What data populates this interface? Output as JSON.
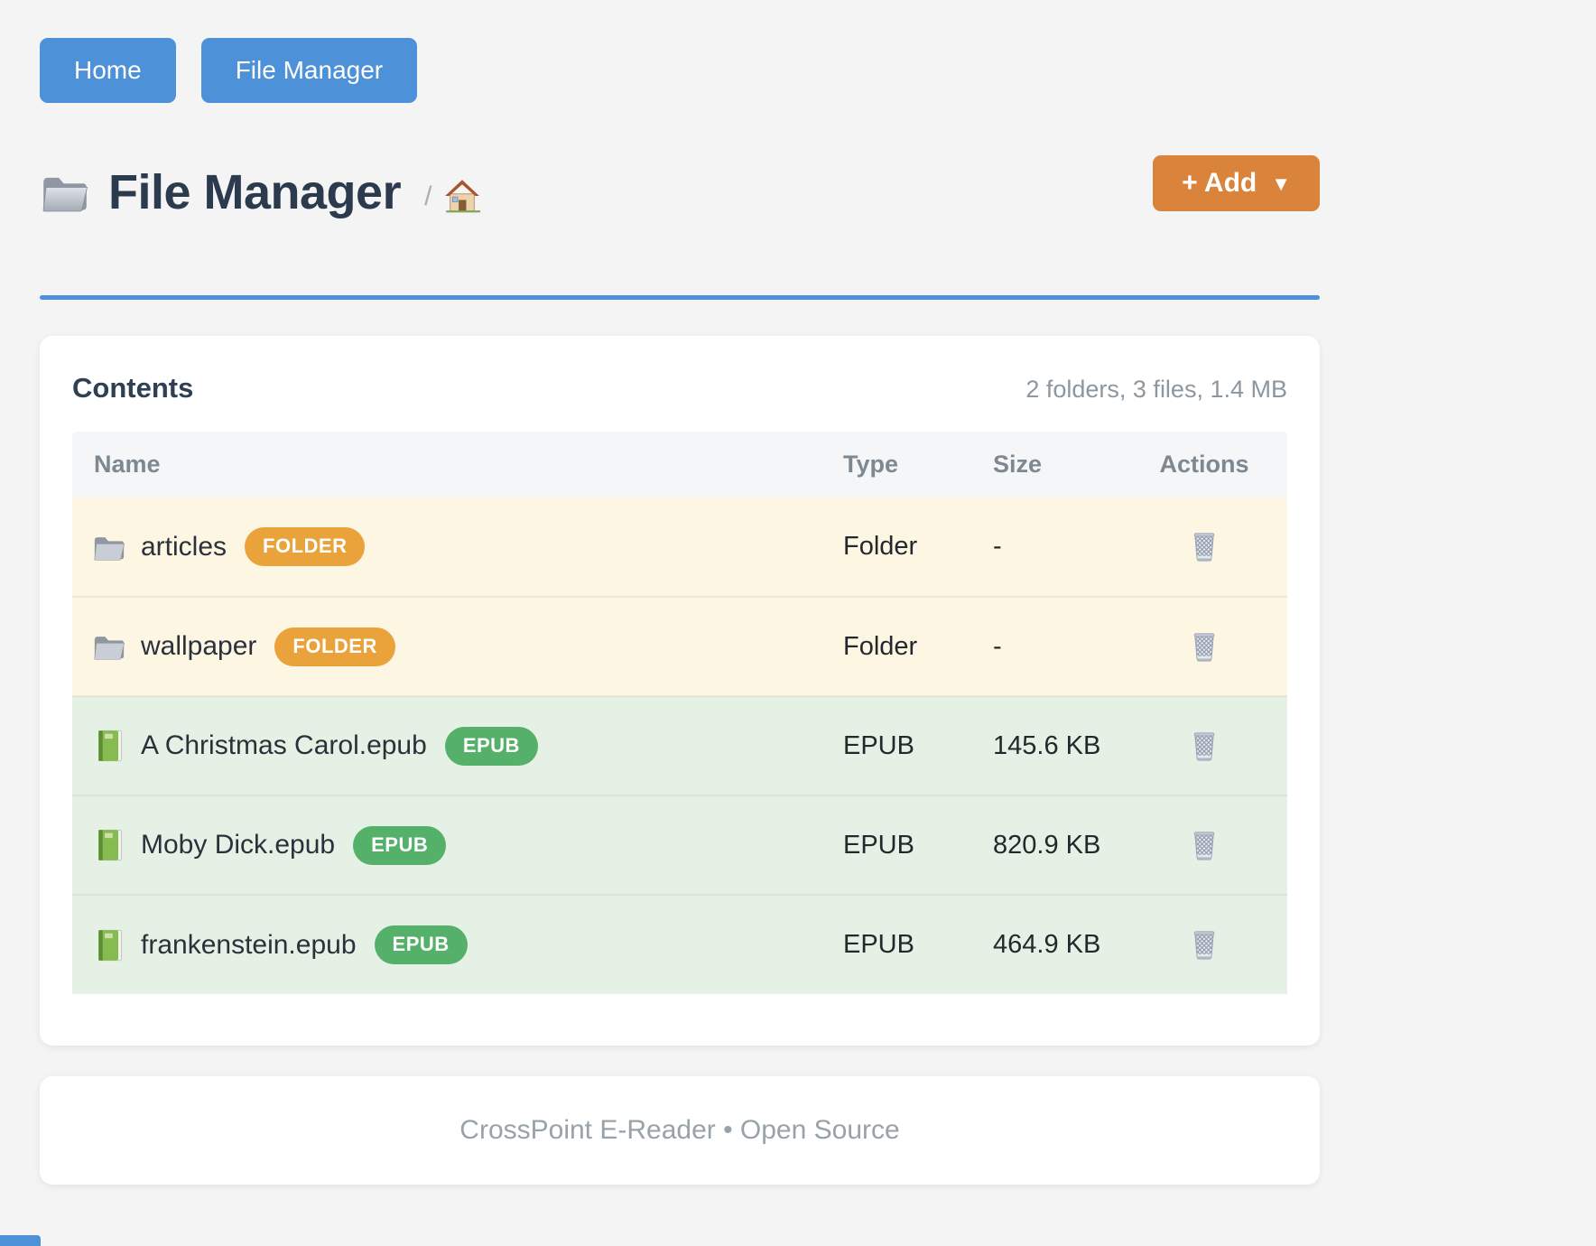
{
  "nav": {
    "items": [
      {
        "label": "Home"
      },
      {
        "label": "File Manager"
      }
    ]
  },
  "header": {
    "title": "File Manager",
    "title_icon": "folder-icon",
    "breadcrumb_separator": "/",
    "breadcrumb_home_icon": "house-icon",
    "add_button": {
      "label": "+ Add",
      "caret": "▼"
    }
  },
  "card": {
    "title": "Contents",
    "summary": "2 folders, 3 files, 1.4 MB"
  },
  "table": {
    "columns": [
      "Name",
      "Type",
      "Size",
      "Actions"
    ],
    "rows": [
      {
        "name": "articles",
        "badge": "FOLDER",
        "type": "Folder",
        "size": "-",
        "kind": "folder",
        "icon": "folder-icon",
        "action_icon": "trash-icon"
      },
      {
        "name": "wallpaper",
        "badge": "FOLDER",
        "type": "Folder",
        "size": "-",
        "kind": "folder",
        "icon": "folder-icon",
        "action_icon": "trash-icon"
      },
      {
        "name": "A Christmas Carol.epub",
        "badge": "EPUB",
        "type": "EPUB",
        "size": "145.6 KB",
        "kind": "file",
        "icon": "green-book-icon",
        "action_icon": "trash-icon"
      },
      {
        "name": "Moby Dick.epub",
        "badge": "EPUB",
        "type": "EPUB",
        "size": "820.9 KB",
        "kind": "file",
        "icon": "green-book-icon",
        "action_icon": "trash-icon"
      },
      {
        "name": "frankenstein.epub",
        "badge": "EPUB",
        "type": "EPUB",
        "size": "464.9 KB",
        "kind": "file",
        "icon": "green-book-icon",
        "action_icon": "trash-icon"
      }
    ]
  },
  "footer": {
    "text": "CrossPoint E-Reader • Open Source"
  },
  "colors": {
    "accent_blue": "#4d91d8",
    "accent_orange": "#d9843a",
    "badge_orange": "#eaa23b",
    "badge_green": "#55b169",
    "row_folder_bg": "#fdf6e3",
    "row_file_bg": "#e6f1e5",
    "page_bg": "#f4f4f5"
  }
}
